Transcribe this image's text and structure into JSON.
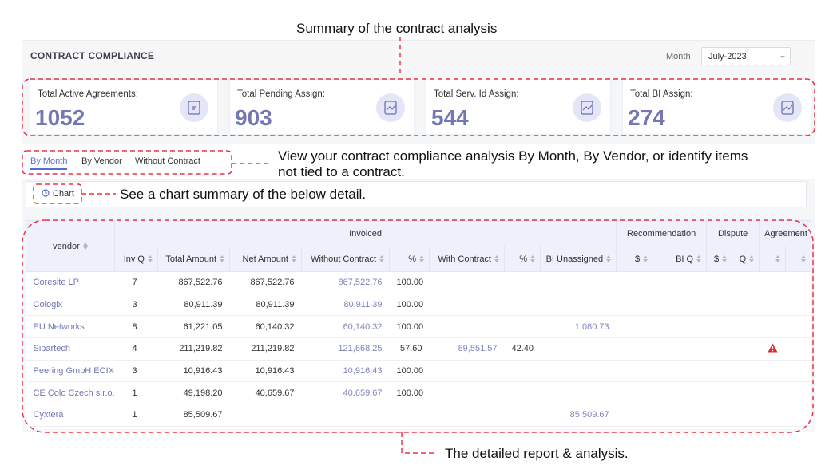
{
  "annotations": {
    "summary": "Summary of the contract analysis",
    "tabs": "View your contract compliance analysis By Month, By Vendor, or identify items not tied to a contract.",
    "chart": "See a chart summary of the below detail.",
    "report": "The detailed report & analysis."
  },
  "header": {
    "title": "CONTRACT COMPLIANCE",
    "month_label": "Month",
    "month_value": "July-2023"
  },
  "cards": [
    {
      "label": "Total Active Agreements:",
      "value": "1052"
    },
    {
      "label": "Total Pending Assign:",
      "value": "903"
    },
    {
      "label": "Total Serv. Id Assign:",
      "value": "544"
    },
    {
      "label": "Total BI Assign:",
      "value": "274"
    }
  ],
  "tabs": [
    "By Month",
    "By Vendor",
    "Without Contract"
  ],
  "chart_button": "Chart",
  "table": {
    "groups": [
      "Invoiced",
      "Recommendation",
      "Dispute",
      "Agreement"
    ],
    "columns": [
      "vendor",
      "Inv Q",
      "Total Amount",
      "Net Amount",
      "Without Contract",
      "%",
      "With Contract",
      "%",
      "BI Unassigned",
      "$",
      "BI Q",
      "$",
      "Q"
    ],
    "rows": [
      {
        "cells": [
          "Coresite LP",
          "7",
          "867,522.76",
          "867,522.76",
          "867,522.76",
          "100.00",
          null,
          null,
          null,
          null,
          null,
          null,
          null
        ]
      },
      {
        "cells": [
          "Cologix",
          "3",
          "80,911.39",
          "80,911.39",
          "80,911.39",
          "100.00",
          null,
          null,
          null,
          null,
          null,
          null,
          null
        ]
      },
      {
        "cells": [
          "EU Networks",
          "8",
          "61,221.05",
          "60,140.32",
          "60,140.32",
          "100.00",
          null,
          null,
          "1,080.73",
          null,
          null,
          null,
          null
        ]
      },
      {
        "cells": [
          "Sipartech",
          "4",
          "211,219.82",
          "211,219.82",
          "121,668.25",
          "57.60",
          "89,551.57",
          "42.40",
          null,
          null,
          null,
          null,
          null
        ],
        "warning": true
      },
      {
        "cells": [
          "Peering GmbH ECIX",
          "3",
          "10,916.43",
          "10,916.43",
          "10,916.43",
          "100.00",
          null,
          null,
          null,
          null,
          null,
          null,
          null
        ]
      },
      {
        "cells": [
          "CE Colo Czech s.r.o.",
          "1",
          "49,198.20",
          "40,659.67",
          "40,659.67",
          "100.00",
          null,
          null,
          null,
          null,
          null,
          null,
          null
        ]
      },
      {
        "cells": [
          "Cyxtera",
          "1",
          "85,509.67",
          null,
          null,
          null,
          null,
          null,
          "85,509.67",
          null,
          null,
          null,
          null
        ]
      }
    ]
  }
}
